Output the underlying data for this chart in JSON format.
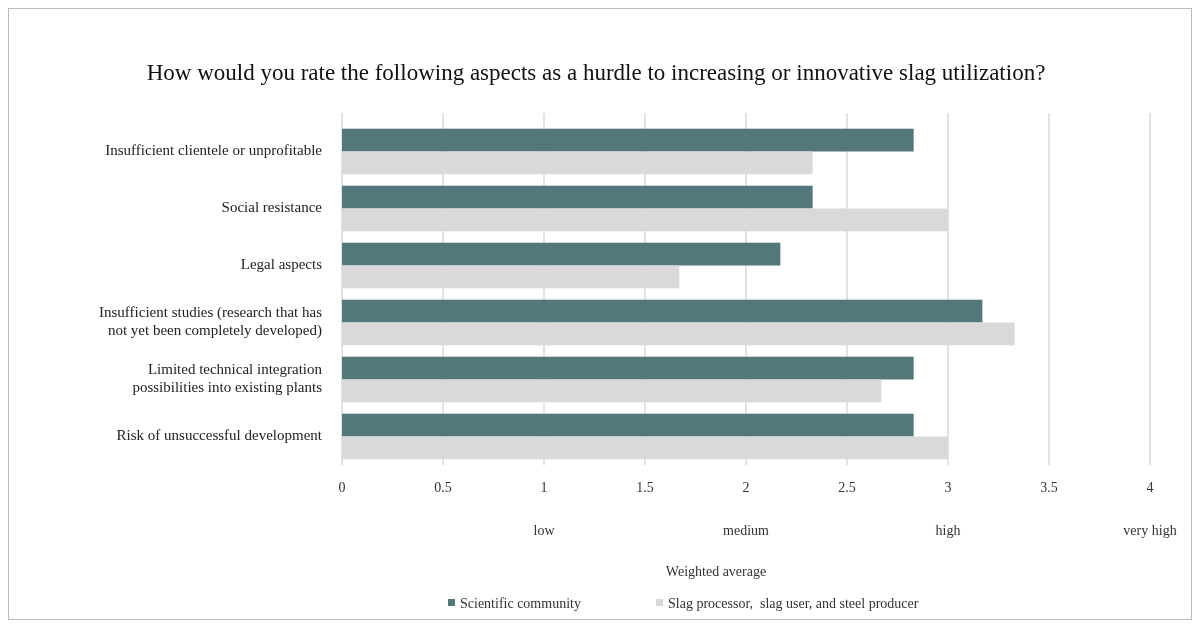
{
  "chart_data": {
    "type": "bar",
    "orientation": "horizontal",
    "title": "How would you rate the following aspects as a hurdle to increasing or innovative slag utilization?",
    "xlabel": "Weighted average",
    "categories": [
      "Insufficient clientele or unprofitable",
      "Social resistance",
      "Legal aspects",
      "Insufficient studies (research that has not yet been completely developed)",
      "Limited technical integration possibilities into existing plants",
      "Risk of unsuccessful development"
    ],
    "series": [
      {
        "name": "Scientific community",
        "color": "#53777a",
        "values": [
          2.83,
          2.33,
          2.17,
          3.17,
          2.83,
          2.83
        ]
      },
      {
        "name": "Slag processor,  slag user, and steel producer",
        "color": "#d9d9d9",
        "values": [
          2.33,
          3.0,
          1.67,
          3.33,
          2.67,
          3.0
        ]
      }
    ],
    "xlim": [
      0,
      4
    ],
    "xticks": [
      0,
      0.5,
      1,
      1.5,
      2,
      2.5,
      3,
      3.5,
      4
    ],
    "grid": "x",
    "legend": "bottom",
    "annotations": [
      "low",
      "medium",
      "high",
      "very high"
    ]
  }
}
